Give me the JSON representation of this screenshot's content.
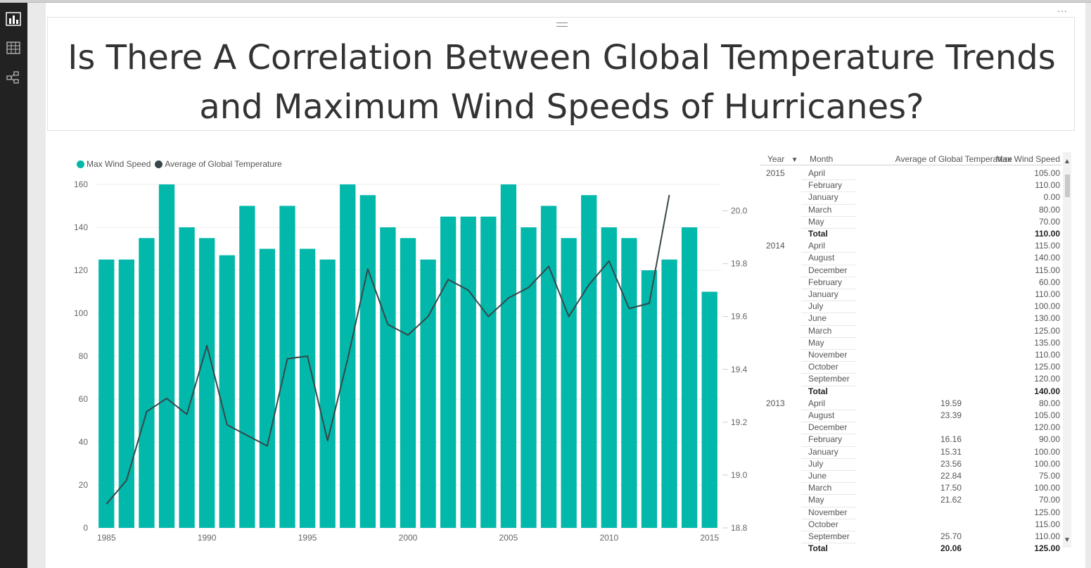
{
  "sidebar": {
    "items": [
      {
        "icon": "report-view-icon",
        "active": true
      },
      {
        "icon": "data-view-icon",
        "active": false
      },
      {
        "icon": "relationships-view-icon",
        "active": false
      }
    ]
  },
  "report": {
    "title": "Is There A Correlation Between Global Temperature Trends and Maximum Wind Speeds of Hurricanes?",
    "title_line1": "Is There A Correlation Between Global Temperature Trends",
    "title_line2": "and Maximum Wind Speeds of Hurricanes?",
    "more_options": "..."
  },
  "colors": {
    "bar": "#01b8aa",
    "line": "#374649",
    "title_text": "#333333"
  },
  "chart_data": {
    "type": "bar",
    "combo": "bar-line",
    "legend": [
      "Max Wind Speed",
      "Average of Global Temperature"
    ],
    "legend_position": "top-left",
    "x": [
      1985,
      1986,
      1987,
      1988,
      1989,
      1990,
      1991,
      1992,
      1993,
      1994,
      1995,
      1996,
      1997,
      1998,
      1999,
      2000,
      2001,
      2002,
      2003,
      2004,
      2005,
      2006,
      2007,
      2008,
      2009,
      2010,
      2011,
      2012,
      2013,
      2014,
      2015
    ],
    "x_ticks": [
      "1985",
      "1990",
      "1995",
      "2000",
      "2005",
      "2010",
      "2015"
    ],
    "series": [
      {
        "name": "Max Wind Speed",
        "type": "bar",
        "axis": "left",
        "values": [
          125,
          125,
          135,
          160,
          140,
          135,
          127,
          150,
          130,
          150,
          130,
          125,
          160,
          155,
          140,
          135,
          125,
          145,
          145,
          145,
          160,
          140,
          150,
          135,
          155,
          140,
          135,
          120,
          125,
          140,
          110
        ]
      },
      {
        "name": "Average of Global Temperature",
        "type": "line",
        "axis": "right",
        "values": [
          18.89,
          18.98,
          19.24,
          19.29,
          19.23,
          19.49,
          19.19,
          19.15,
          19.11,
          19.44,
          19.45,
          19.13,
          19.44,
          19.78,
          19.57,
          19.53,
          19.6,
          19.74,
          19.7,
          19.6,
          19.67,
          19.71,
          19.79,
          19.6,
          19.72,
          19.81,
          19.63,
          19.65,
          20.06,
          null,
          null
        ]
      }
    ],
    "y_left": {
      "min": 0,
      "max": 160,
      "ticks": [
        "0",
        "20",
        "40",
        "60",
        "80",
        "100",
        "120",
        "140",
        "160"
      ]
    },
    "y_right": {
      "min": 18.8,
      "max": 20.1,
      "ticks": [
        "18.8",
        "19.0",
        "19.2",
        "19.4",
        "19.6",
        "19.8",
        "20.0"
      ]
    },
    "grid": true
  },
  "matrix": {
    "headers": {
      "year": "Year",
      "month": "Month",
      "temp": "Average of Global Temperature",
      "wind": "Max Wind Speed"
    },
    "rows": [
      {
        "year": "2015",
        "month": "April",
        "temp": "",
        "wind": "105.00"
      },
      {
        "year": "",
        "month": "February",
        "temp": "",
        "wind": "110.00"
      },
      {
        "year": "",
        "month": "January",
        "temp": "",
        "wind": "0.00"
      },
      {
        "year": "",
        "month": "March",
        "temp": "",
        "wind": "80.00"
      },
      {
        "year": "",
        "month": "May",
        "temp": "",
        "wind": "70.00"
      },
      {
        "year": "",
        "month": "Total",
        "temp": "",
        "wind": "110.00",
        "total": true
      },
      {
        "year": "2014",
        "month": "April",
        "temp": "",
        "wind": "115.00"
      },
      {
        "year": "",
        "month": "August",
        "temp": "",
        "wind": "140.00"
      },
      {
        "year": "",
        "month": "December",
        "temp": "",
        "wind": "115.00"
      },
      {
        "year": "",
        "month": "February",
        "temp": "",
        "wind": "60.00"
      },
      {
        "year": "",
        "month": "January",
        "temp": "",
        "wind": "110.00"
      },
      {
        "year": "",
        "month": "July",
        "temp": "",
        "wind": "100.00"
      },
      {
        "year": "",
        "month": "June",
        "temp": "",
        "wind": "130.00"
      },
      {
        "year": "",
        "month": "March",
        "temp": "",
        "wind": "125.00"
      },
      {
        "year": "",
        "month": "May",
        "temp": "",
        "wind": "135.00"
      },
      {
        "year": "",
        "month": "November",
        "temp": "",
        "wind": "110.00"
      },
      {
        "year": "",
        "month": "October",
        "temp": "",
        "wind": "125.00"
      },
      {
        "year": "",
        "month": "September",
        "temp": "",
        "wind": "120.00"
      },
      {
        "year": "",
        "month": "Total",
        "temp": "",
        "wind": "140.00",
        "total": true
      },
      {
        "year": "2013",
        "month": "April",
        "temp": "19.59",
        "wind": "80.00"
      },
      {
        "year": "",
        "month": "August",
        "temp": "23.39",
        "wind": "105.00"
      },
      {
        "year": "",
        "month": "December",
        "temp": "",
        "wind": "120.00"
      },
      {
        "year": "",
        "month": "February",
        "temp": "16.16",
        "wind": "90.00"
      },
      {
        "year": "",
        "month": "January",
        "temp": "15.31",
        "wind": "100.00"
      },
      {
        "year": "",
        "month": "July",
        "temp": "23.56",
        "wind": "100.00"
      },
      {
        "year": "",
        "month": "June",
        "temp": "22.84",
        "wind": "75.00"
      },
      {
        "year": "",
        "month": "March",
        "temp": "17.50",
        "wind": "100.00"
      },
      {
        "year": "",
        "month": "May",
        "temp": "21.62",
        "wind": "70.00"
      },
      {
        "year": "",
        "month": "November",
        "temp": "",
        "wind": "125.00"
      },
      {
        "year": "",
        "month": "October",
        "temp": "",
        "wind": "115.00"
      },
      {
        "year": "",
        "month": "September",
        "temp": "25.70",
        "wind": "110.00"
      },
      {
        "year": "",
        "month": "Total",
        "temp": "20.06",
        "wind": "125.00",
        "total": true
      }
    ]
  }
}
